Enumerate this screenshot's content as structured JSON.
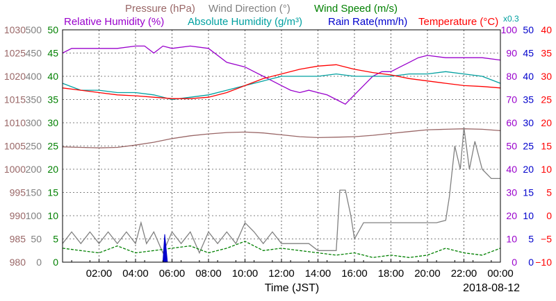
{
  "chart_data": {
    "type": "line",
    "date_label": "2018-08-12",
    "xlabel": "Time (JST)",
    "x_range": [
      "00:00",
      "24:00"
    ],
    "x_ticks": [
      "02:00",
      "04:00",
      "06:00",
      "08:00",
      "10:00",
      "12:00",
      "14:00",
      "16:00",
      "18:00",
      "20:00",
      "22:00",
      "00:00"
    ],
    "legend_row1": [
      {
        "text": "Pressure (hPa)",
        "color": "#996666"
      },
      {
        "text": "Wind Direction (°)",
        "color": "#808080"
      },
      {
        "text": "Wind Speed (m/s)",
        "color": "#008000"
      }
    ],
    "legend_row2": [
      {
        "text": "Relative Humidity (%)",
        "color": "#9900cc"
      },
      {
        "text": "Absolute Humidity (g/m³)",
        "color": "#00a0a0"
      },
      {
        "text": "Rain Rate(mm/h)",
        "color": "#0000cc"
      },
      {
        "text": "Temperature (°C)",
        "color": "#ff0000"
      }
    ],
    "abs_humidity_scale_note": "x0.3",
    "axes": {
      "pressure": {
        "ticks": [
          980,
          985,
          990,
          995,
          1000,
          1005,
          1010,
          1015,
          1020,
          1025,
          1030
        ],
        "color": "#996666"
      },
      "wind_direction": {
        "ticks": [
          0,
          50,
          100,
          150,
          200,
          250,
          300,
          350,
          400,
          450,
          500
        ],
        "color": "#808080"
      },
      "wind_speed": {
        "ticks": [
          0,
          5,
          10,
          15,
          20,
          25,
          30,
          35,
          40,
          45,
          50
        ],
        "color": "#008000"
      },
      "relative_humidity": {
        "ticks": [
          0,
          10,
          20,
          30,
          40,
          50,
          60,
          70,
          80,
          90,
          100
        ],
        "color": "#9900cc"
      },
      "rain_rate": {
        "ticks": [
          0,
          5,
          10,
          15,
          20,
          25,
          30,
          35,
          40,
          45,
          50
        ],
        "color": "#0000cc"
      },
      "temperature": {
        "ticks": [
          -10,
          -5,
          0,
          5,
          10,
          15,
          20,
          25,
          30,
          35,
          40
        ],
        "color": "#ff0000"
      }
    },
    "series": [
      {
        "name": "Pressure (hPa)",
        "axis": "pressure",
        "color": "#996666",
        "x": [
          0,
          1,
          2,
          3,
          4,
          5,
          6,
          7,
          8,
          9,
          10,
          11,
          12,
          13,
          14,
          15,
          16,
          17,
          18,
          19,
          20,
          21,
          22,
          23,
          24
        ],
        "y": [
          1004.8,
          1004.7,
          1004.6,
          1004.7,
          1005.2,
          1005.8,
          1006.6,
          1007.2,
          1007.6,
          1007.9,
          1008.0,
          1007.8,
          1007.4,
          1007.0,
          1006.8,
          1006.9,
          1007.0,
          1007.3,
          1007.7,
          1008.1,
          1008.5,
          1008.6,
          1008.7,
          1008.6,
          1008.3
        ]
      },
      {
        "name": "Wind Direction (°)",
        "axis": "wind_direction",
        "color": "#808080",
        "x": [
          0,
          0.5,
          1,
          1.5,
          2,
          2.5,
          3,
          3.5,
          4,
          4.3,
          4.6,
          5,
          5.5,
          6,
          6.5,
          7,
          7.5,
          8,
          8.5,
          9,
          9.5,
          10,
          10.5,
          11,
          11.5,
          12,
          12.5,
          13,
          13.5,
          14,
          14.5,
          15,
          15.2,
          15.5,
          15.8,
          16,
          16.5,
          17,
          17.5,
          18,
          18.5,
          19,
          19.5,
          20,
          20.5,
          21,
          21.2,
          21.5,
          21.8,
          22,
          22.3,
          22.6,
          23,
          23.5,
          24
        ],
        "y": [
          40,
          65,
          40,
          65,
          40,
          65,
          40,
          65,
          40,
          85,
          40,
          65,
          20,
          65,
          40,
          65,
          20,
          65,
          40,
          65,
          40,
          85,
          65,
          40,
          65,
          40,
          40,
          40,
          40,
          25,
          25,
          25,
          155,
          155,
          100,
          50,
          85,
          85,
          85,
          85,
          85,
          85,
          85,
          85,
          85,
          90,
          140,
          250,
          200,
          290,
          200,
          260,
          200,
          180,
          180
        ]
      },
      {
        "name": "Wind Speed (m/s)",
        "axis": "wind_speed",
        "color": "#008000",
        "x": [
          0,
          1,
          2,
          3,
          4,
          5,
          6,
          7,
          8,
          9,
          10,
          11,
          12,
          13,
          14,
          15,
          16,
          17,
          18,
          19,
          20,
          21,
          22,
          23,
          24
        ],
        "y": [
          3,
          2.5,
          2,
          3.5,
          2,
          2.5,
          3,
          3.5,
          2,
          3,
          4.5,
          2.5,
          3,
          2.5,
          2,
          1.5,
          2,
          1,
          1.5,
          1,
          1.5,
          3,
          2,
          1.5,
          3
        ]
      },
      {
        "name": "Relative Humidity (%)",
        "axis": "relative_humidity",
        "color": "#9900cc",
        "x": [
          0,
          0.5,
          1,
          2,
          3,
          4,
          4.5,
          5,
          5.5,
          6,
          7,
          8,
          9,
          10,
          10.5,
          11,
          11.5,
          12,
          12.5,
          13,
          13.5,
          14,
          14.5,
          15,
          15.5,
          16,
          16.5,
          17,
          17.5,
          18,
          18.5,
          19,
          19.5,
          20,
          21,
          22,
          23,
          24
        ],
        "y": [
          90,
          92,
          92,
          92,
          92,
          93,
          93,
          90,
          93,
          92,
          93,
          92,
          86,
          84,
          82,
          80,
          78,
          76,
          74,
          73,
          74,
          73,
          72,
          70,
          68,
          72,
          76,
          80,
          82,
          82,
          84,
          86,
          88,
          89,
          88,
          88,
          88,
          87
        ]
      },
      {
        "name": "Absolute Humidity (g/m³)",
        "axis": "wind_speed",
        "color": "#00a0a0",
        "x": [
          0,
          1,
          2,
          3,
          4,
          5,
          6,
          7,
          8,
          9,
          10,
          11,
          12,
          13,
          14,
          15,
          16,
          17,
          18,
          19,
          20,
          21,
          22,
          23,
          24
        ],
        "y": [
          38.5,
          37,
          37,
          36.5,
          36.5,
          36,
          35,
          35.5,
          36,
          37,
          38,
          39,
          40,
          40,
          40,
          40.5,
          40,
          40,
          40,
          40.5,
          40.5,
          41,
          40.5,
          40,
          38.5
        ]
      },
      {
        "name": "Rain Rate(mm/h)",
        "axis": "rain_rate",
        "color": "#0000cc",
        "x": [
          5.5,
          5.55,
          5.6,
          5.65,
          5.7,
          5.75
        ],
        "y": [
          0,
          3,
          6,
          4,
          2,
          0
        ]
      },
      {
        "name": "Temperature (°C)",
        "axis": "temperature",
        "color": "#ff0000",
        "x": [
          0,
          1,
          2,
          3,
          4,
          5,
          6,
          7,
          8,
          9,
          10,
          11,
          12,
          13,
          14,
          15,
          16,
          17,
          18,
          19,
          20,
          21,
          22,
          23,
          24
        ],
        "y": [
          27.5,
          27,
          26.5,
          26,
          25.8,
          25.5,
          25.2,
          25.2,
          25.5,
          26.5,
          28,
          29.5,
          30.5,
          31.5,
          32.2,
          32.5,
          31.5,
          30.8,
          30.3,
          29.5,
          29,
          28.5,
          28,
          27.8,
          27.5
        ]
      }
    ]
  }
}
